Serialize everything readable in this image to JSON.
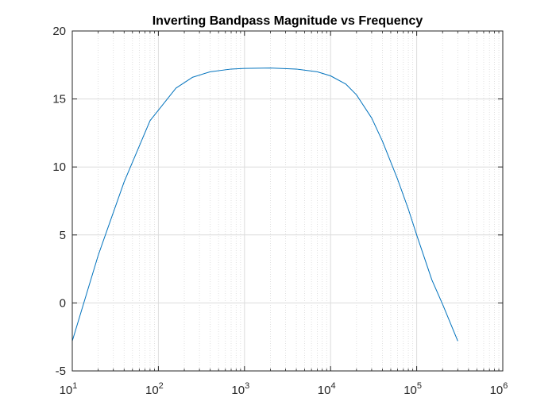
{
  "chart_data": {
    "type": "line",
    "title": "Inverting Bandpass Magnitude vs Frequency",
    "xlabel": "",
    "ylabel": "",
    "xscale": "log",
    "xlim": [
      10,
      1000000
    ],
    "ylim": [
      -5,
      20
    ],
    "grid": true,
    "minor_grid_x": true,
    "x_ticks": [
      {
        "base": "10",
        "exp": "1"
      },
      {
        "base": "10",
        "exp": "2"
      },
      {
        "base": "10",
        "exp": "3"
      },
      {
        "base": "10",
        "exp": "4"
      },
      {
        "base": "10",
        "exp": "5"
      },
      {
        "base": "10",
        "exp": "6"
      }
    ],
    "y_ticks": [
      "-5",
      "0",
      "5",
      "10",
      "15",
      "20"
    ],
    "series": [
      {
        "color": "#0072BD",
        "x": [
          10,
          20,
          40,
          80,
          160,
          250,
          400,
          700,
          1000,
          2000,
          4000,
          7000,
          10000,
          15000,
          20000,
          30000,
          40000,
          60000,
          80000,
          100000,
          150000,
          200000,
          300000
        ],
        "y": [
          -2.8,
          3.5,
          8.9,
          13.4,
          15.8,
          16.6,
          17.0,
          17.2,
          17.25,
          17.28,
          17.2,
          17.0,
          16.7,
          16.1,
          15.3,
          13.6,
          11.9,
          9.1,
          6.9,
          5.0,
          1.7,
          -0.1,
          -2.8
        ]
      }
    ]
  }
}
